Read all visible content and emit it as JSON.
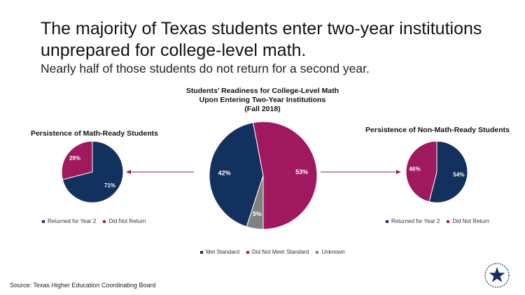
{
  "header": {
    "title_line1": "The majority of Texas students enter two-year institutions",
    "title_line2": "unprepared for college-level math.",
    "subtitle": "Nearly half of those students do not return for a second year."
  },
  "colors": {
    "navy": "#13315f",
    "magenta": "#a0195f",
    "gray": "#808080"
  },
  "chart_data": [
    {
      "type": "pie",
      "title_lines": [
        "Students’ Readiness for College-Level Math",
        "Upon Entering Two-Year Institutions",
        "(Fall 2018)"
      ],
      "labels": [
        "Met Standard",
        "Did Not Meet Standard",
        "Unknown"
      ],
      "values": [
        42,
        53,
        5
      ],
      "data_labels": [
        "42%",
        "53%",
        "5%"
      ]
    },
    {
      "type": "pie",
      "title": "Persistence of Math-Ready Students",
      "labels": [
        "Returned for Year 2",
        "Did Not Return"
      ],
      "values": [
        71,
        29
      ],
      "data_labels": [
        "71%",
        "29%"
      ]
    },
    {
      "type": "pie",
      "title": "Persistence of Non-Math-Ready Students",
      "labels": [
        "Returned for Year 2",
        "Did Not Return"
      ],
      "values": [
        54,
        46
      ],
      "data_labels": [
        "54%",
        "46%"
      ]
    }
  ],
  "source": "Source: Texas Higher Education Coordinating Board"
}
